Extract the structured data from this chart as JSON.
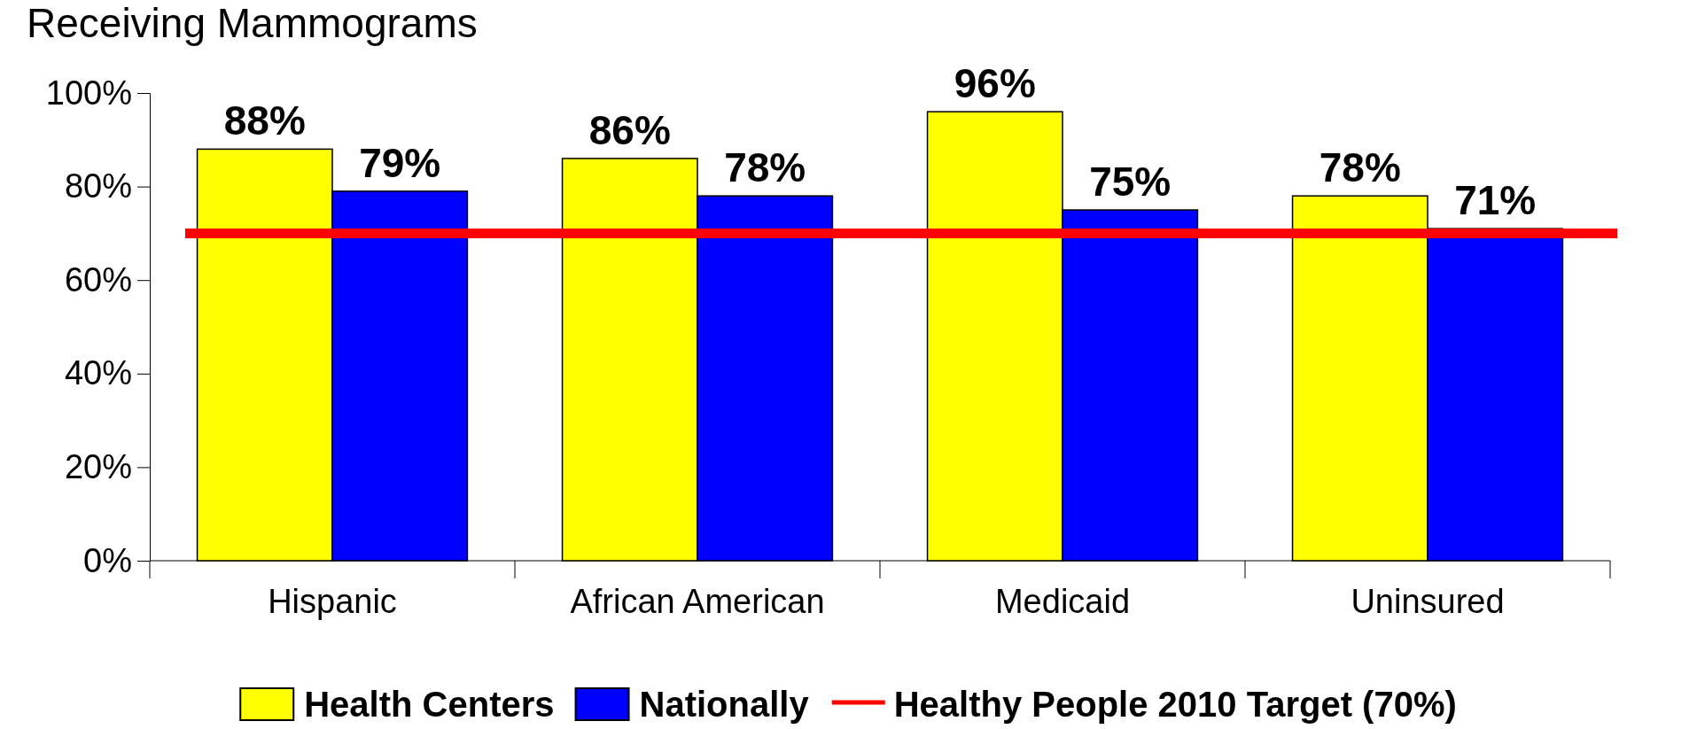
{
  "chart_data": {
    "type": "bar",
    "title": "Receiving Mammograms",
    "categories": [
      "Hispanic",
      "African American",
      "Medicaid",
      "Uninsured"
    ],
    "series": [
      {
        "name": "Health Centers",
        "color": "#ffff00",
        "values": [
          88,
          86,
          96,
          78
        ]
      },
      {
        "name": "Nationally",
        "color": "#0000ff",
        "values": [
          79,
          78,
          75,
          71
        ]
      }
    ],
    "ylim": [
      0,
      100
    ],
    "yticks": [
      {
        "value": 0,
        "label": "0%"
      },
      {
        "value": 20,
        "label": "20%"
      },
      {
        "value": 40,
        "label": "40%"
      },
      {
        "value": 60,
        "label": "60%"
      },
      {
        "value": 80,
        "label": "80%"
      },
      {
        "value": 100,
        "label": "100%"
      }
    ],
    "value_labels": [
      [
        "88%",
        "86%",
        "96%",
        "78%"
      ],
      [
        "79%",
        "78%",
        "75%",
        "71%"
      ]
    ],
    "ref_lines": [
      {
        "axis": "y",
        "value": 70,
        "label": "Healthy People 2010 Target (70%)",
        "color": "#ff0000"
      }
    ],
    "legend": "bottom"
  }
}
